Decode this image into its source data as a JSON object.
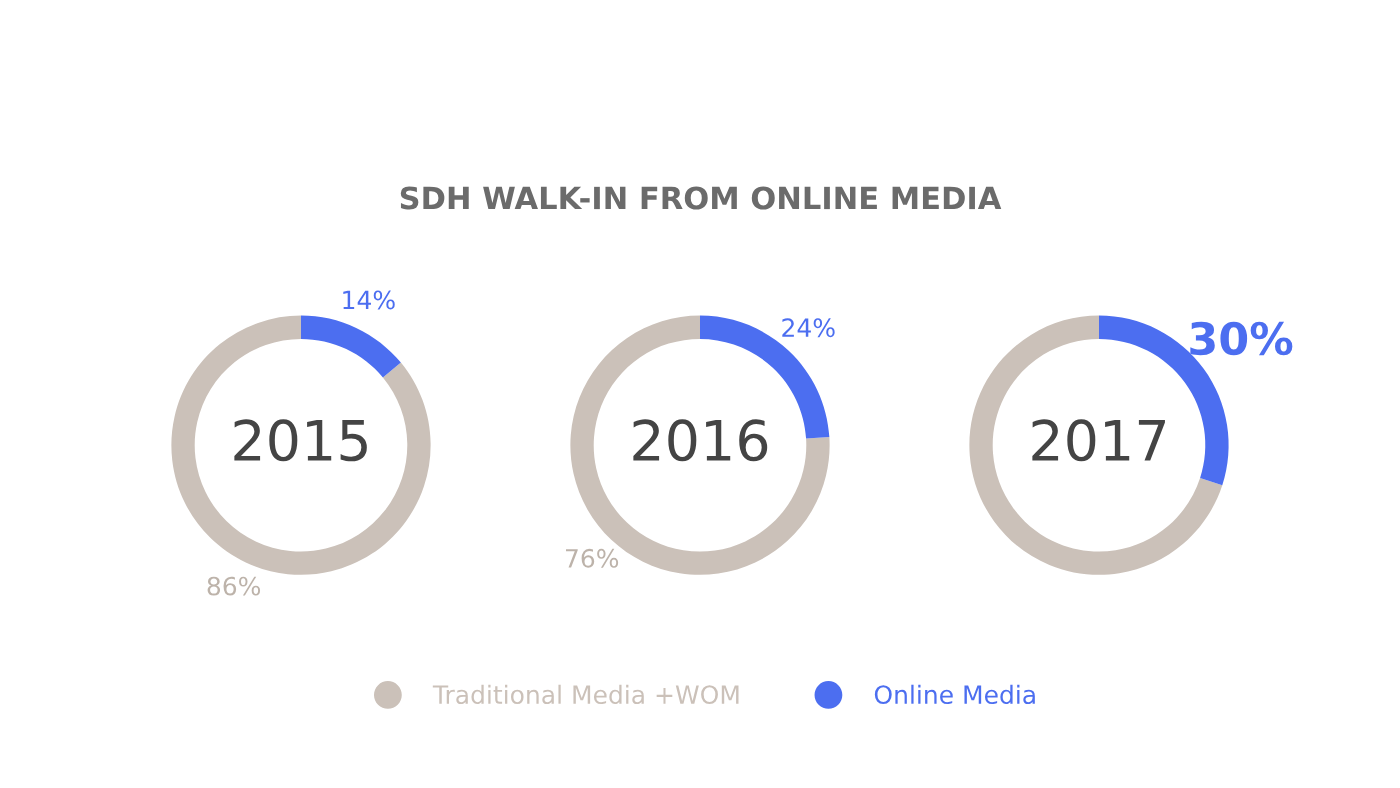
{
  "chart_data": [
    {
      "type": "donut",
      "values": [
        86,
        14
      ],
      "colors": [
        "#cbc1b9",
        "#4c6ef0"
      ],
      "value_labels": [
        "86%",
        "14%"
      ],
      "annotations": [
        "2015"
      ]
    },
    {
      "type": "donut",
      "title": "SDH WALK-IN FROM ONLINE MEDIA",
      "categories": [
        "Traditional Media +WOM",
        "Online Media"
      ],
      "values": [
        76,
        24
      ],
      "colors": [
        "#cbc1b9",
        "#4c6ef0"
      ],
      "value_labels": [
        "76%",
        "24%"
      ],
      "annotations": [
        "2016"
      ],
      "legend": "bottom"
    },
    {
      "type": "donut",
      "values": [
        70,
        30
      ],
      "colors": [
        "#cbc1b9",
        "#4c6ef0"
      ],
      "value_labels": [
        null,
        "30%"
      ],
      "annotations": [
        "2017"
      ]
    }
  ]
}
